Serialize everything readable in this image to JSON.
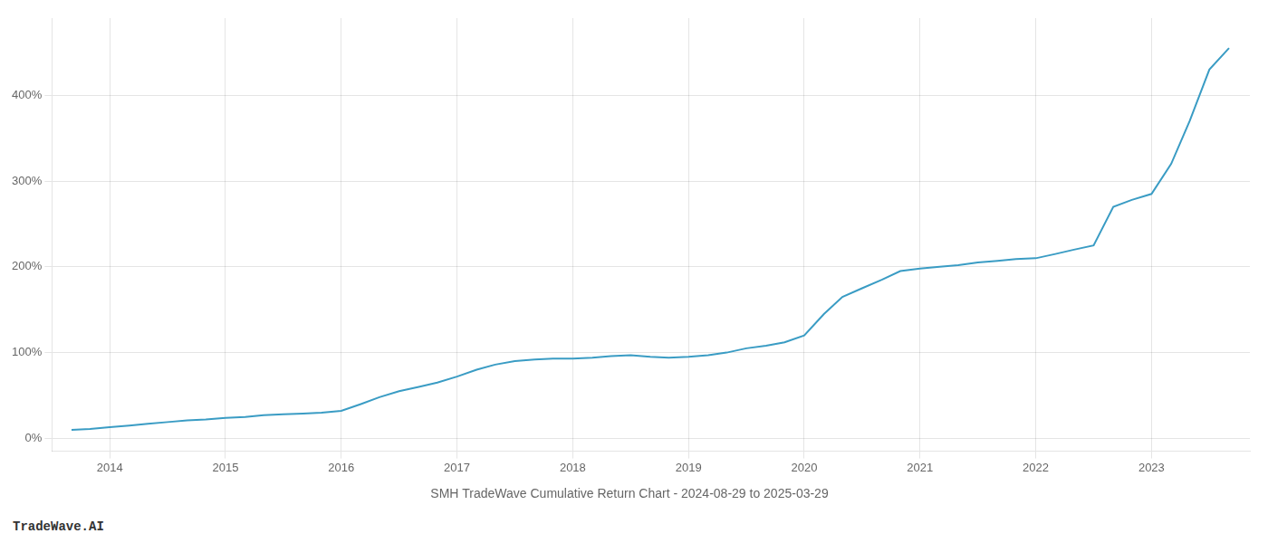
{
  "chart_data": {
    "type": "line",
    "title": "SMH TradeWave Cumulative Return Chart - 2024-08-29 to 2025-03-29",
    "annotations": [
      "TradeWave.AI"
    ],
    "color": "#3a9cc4",
    "grid": true,
    "x": [
      2013.67,
      2013.83,
      2014.0,
      2014.17,
      2014.33,
      2014.5,
      2014.67,
      2014.83,
      2015.0,
      2015.17,
      2015.33,
      2015.5,
      2015.67,
      2015.83,
      2016.0,
      2016.17,
      2016.33,
      2016.5,
      2016.67,
      2016.83,
      2017.0,
      2017.17,
      2017.33,
      2017.5,
      2017.67,
      2017.83,
      2018.0,
      2018.17,
      2018.33,
      2018.5,
      2018.67,
      2018.83,
      2019.0,
      2019.17,
      2019.33,
      2019.5,
      2019.67,
      2019.83,
      2020.0,
      2020.17,
      2020.33,
      2020.5,
      2020.67,
      2020.83,
      2021.0,
      2021.17,
      2021.33,
      2021.5,
      2021.67,
      2021.83,
      2022.0,
      2022.17,
      2022.33,
      2022.5,
      2022.67,
      2022.83,
      2023.0,
      2023.17,
      2023.33,
      2023.5,
      2023.67
    ],
    "values": [
      10,
      11,
      13,
      15,
      17,
      19,
      21,
      22,
      24,
      25,
      27,
      28,
      29,
      30,
      32,
      40,
      48,
      55,
      60,
      65,
      72,
      80,
      86,
      90,
      92,
      93,
      93,
      94,
      96,
      97,
      95,
      94,
      95,
      97,
      100,
      105,
      108,
      112,
      120,
      145,
      165,
      175,
      185,
      195,
      198,
      200,
      202,
      205,
      207,
      209,
      210,
      215,
      220,
      225,
      270,
      278,
      285,
      320,
      370,
      430,
      455
    ],
    "xlim": [
      2013.5,
      2023.85
    ],
    "xticks": [
      2014,
      2015,
      2016,
      2017,
      2018,
      2019,
      2020,
      2021,
      2022,
      2023
    ],
    "ylim": [
      -15,
      490
    ],
    "yticks": [
      {
        "value": 0,
        "label": "0%"
      },
      {
        "value": 100,
        "label": "100%"
      },
      {
        "value": 200,
        "label": "200%"
      },
      {
        "value": 300,
        "label": "300%"
      },
      {
        "value": 400,
        "label": "400%"
      }
    ]
  }
}
